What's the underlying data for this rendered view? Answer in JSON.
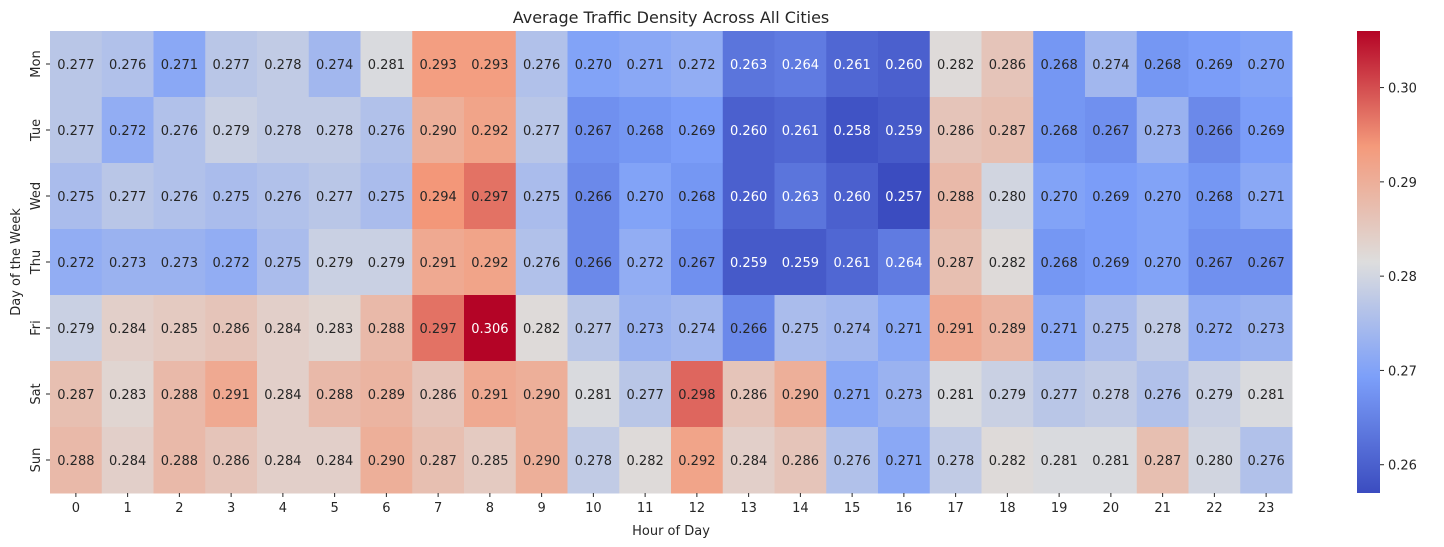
{
  "chart_data": {
    "type": "heatmap",
    "title": "Average Traffic Density Across All Cities",
    "xlabel": "Hour of Day",
    "ylabel": "Day of the Week",
    "x_categories": [
      "0",
      "1",
      "2",
      "3",
      "4",
      "5",
      "6",
      "7",
      "8",
      "9",
      "10",
      "11",
      "12",
      "13",
      "14",
      "15",
      "16",
      "17",
      "18",
      "19",
      "20",
      "21",
      "22",
      "23"
    ],
    "y_categories": [
      "Mon",
      "Tue",
      "Wed",
      "Thu",
      "Fri",
      "Sat",
      "Sun"
    ],
    "values": [
      [
        0.277,
        0.276,
        0.271,
        0.277,
        0.278,
        0.274,
        0.281,
        0.293,
        0.293,
        0.276,
        0.27,
        0.271,
        0.272,
        0.263,
        0.264,
        0.261,
        0.26,
        0.282,
        0.286,
        0.268,
        0.274,
        0.268,
        0.269,
        0.27
      ],
      [
        0.277,
        0.272,
        0.276,
        0.279,
        0.278,
        0.278,
        0.276,
        0.29,
        0.292,
        0.277,
        0.267,
        0.268,
        0.269,
        0.26,
        0.261,
        0.258,
        0.259,
        0.286,
        0.287,
        0.268,
        0.267,
        0.273,
        0.266,
        0.269
      ],
      [
        0.275,
        0.277,
        0.276,
        0.275,
        0.276,
        0.277,
        0.275,
        0.294,
        0.297,
        0.275,
        0.266,
        0.27,
        0.268,
        0.26,
        0.263,
        0.26,
        0.257,
        0.288,
        0.28,
        0.27,
        0.269,
        0.27,
        0.268,
        0.271
      ],
      [
        0.272,
        0.273,
        0.273,
        0.272,
        0.275,
        0.279,
        0.279,
        0.291,
        0.292,
        0.276,
        0.266,
        0.272,
        0.267,
        0.259,
        0.259,
        0.261,
        0.264,
        0.287,
        0.282,
        0.268,
        0.269,
        0.27,
        0.267,
        0.267
      ],
      [
        0.279,
        0.284,
        0.285,
        0.286,
        0.284,
        0.283,
        0.288,
        0.297,
        0.306,
        0.282,
        0.277,
        0.273,
        0.274,
        0.266,
        0.275,
        0.274,
        0.271,
        0.291,
        0.289,
        0.271,
        0.275,
        0.278,
        0.272,
        0.273
      ],
      [
        0.287,
        0.283,
        0.288,
        0.291,
        0.284,
        0.288,
        0.289,
        0.286,
        0.291,
        0.29,
        0.281,
        0.277,
        0.298,
        0.286,
        0.29,
        0.271,
        0.273,
        0.281,
        0.279,
        0.277,
        0.278,
        0.276,
        0.279,
        0.281
      ],
      [
        0.288,
        0.284,
        0.288,
        0.286,
        0.284,
        0.284,
        0.29,
        0.287,
        0.285,
        0.29,
        0.278,
        0.282,
        0.292,
        0.284,
        0.286,
        0.276,
        0.271,
        0.278,
        0.282,
        0.281,
        0.281,
        0.287,
        0.28,
        0.276
      ]
    ],
    "value_format": "0.000",
    "colormap": "coolwarm",
    "colorbar": {
      "range": [
        0.257,
        0.306
      ],
      "ticks": [
        0.26,
        0.27,
        0.28,
        0.29,
        0.3
      ],
      "tick_labels": [
        "0.26",
        "0.27",
        "0.28",
        "0.29",
        "0.30"
      ]
    }
  }
}
